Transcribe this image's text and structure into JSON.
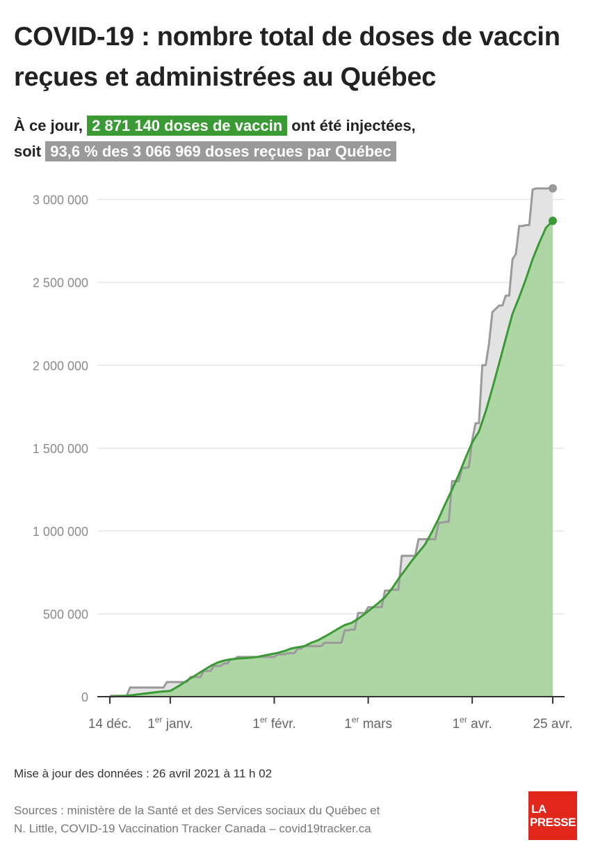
{
  "header": {
    "title": "COVID-19 : nombre total de doses de vaccin reçues et administrées au Québec",
    "subtitle_part1": "À ce jour,",
    "subtitle_highlight_green": "2 871 140 doses de vaccin",
    "subtitle_part2": "ont été injectées,",
    "subtitle_part3": "soit",
    "subtitle_highlight_grey": "93,6 % des 3 066 969 doses reçues par Québec"
  },
  "colors": {
    "administered_line": "#3a9a34",
    "administered_fill": "#aed5a4",
    "received_line": "#9a9a9a",
    "received_fill": "#e3e3e3",
    "grid": "#e6e6e6",
    "logo_bg": "#e1261c"
  },
  "chart_data": {
    "type": "area",
    "title": "COVID-19 : nombre total de doses de vaccin reçues et administrées au Québec",
    "xlabel": "",
    "ylabel": "",
    "x_unit": "days since 14 déc. 2020",
    "xlim": [
      0,
      132
    ],
    "ylim": [
      0,
      3200000
    ],
    "grid": true,
    "y_ticks": [
      {
        "value": 0,
        "label": "0"
      },
      {
        "value": 500000,
        "label": "500 000"
      },
      {
        "value": 1000000,
        "label": "1 000 000"
      },
      {
        "value": 1500000,
        "label": "1 500 000"
      },
      {
        "value": 2000000,
        "label": "2 000 000"
      },
      {
        "value": 2500000,
        "label": "2 500 000"
      },
      {
        "value": 3000000,
        "label": "3 000 000"
      }
    ],
    "x_ticks": [
      {
        "day": 0,
        "label": "14 déc.",
        "sup": ""
      },
      {
        "day": 18,
        "label": "janv.",
        "sup": "er",
        "prefix": "1"
      },
      {
        "day": 49,
        "label": "févr.",
        "sup": "er",
        "prefix": "1"
      },
      {
        "day": 77,
        "label": "mars",
        "sup": "er",
        "prefix": "1"
      },
      {
        "day": 108,
        "label": "avr.",
        "sup": "er",
        "prefix": "1"
      },
      {
        "day": 132,
        "label": "25 avr.",
        "sup": ""
      }
    ],
    "series": [
      {
        "name": "Doses reçues",
        "style": "step",
        "x": [
          0,
          5,
          6,
          16,
          17,
          23,
          24,
          27,
          28,
          30,
          31,
          33,
          34,
          35,
          36,
          37,
          38,
          49,
          50,
          52,
          53,
          55,
          56,
          57,
          58,
          63,
          64,
          69,
          70,
          71,
          72,
          73,
          74,
          76,
          77,
          81,
          82,
          83,
          84,
          86,
          87,
          91,
          92,
          97,
          98,
          99,
          100,
          101,
          102,
          104,
          105,
          106,
          107,
          108,
          109,
          110,
          111,
          112,
          113,
          114,
          115,
          116,
          117,
          118,
          119,
          120,
          121,
          122,
          123,
          124,
          125,
          126,
          127,
          128,
          129,
          130,
          131,
          132
        ],
        "values": [
          5000,
          5000,
          55000,
          55000,
          88000,
          88000,
          118000,
          118000,
          155000,
          155000,
          185000,
          185000,
          200000,
          200000,
          225000,
          225000,
          240000,
          240000,
          255000,
          255000,
          262000,
          262000,
          290000,
          290000,
          305000,
          305000,
          325000,
          325000,
          400000,
          400000,
          405000,
          405000,
          505000,
          505000,
          540000,
          540000,
          640000,
          640000,
          645000,
          645000,
          850000,
          850000,
          950000,
          950000,
          1050000,
          1050000,
          1055000,
          1055000,
          1300000,
          1300000,
          1380000,
          1380000,
          1385000,
          1550000,
          1650000,
          1650000,
          2000000,
          2000000,
          2130000,
          2320000,
          2340000,
          2360000,
          2360000,
          2420000,
          2420000,
          2640000,
          2670000,
          2840000,
          2840000,
          2845000,
          2845000,
          3060000,
          3066969,
          3066969,
          3066969,
          3066969,
          3066969,
          3066969
        ]
      },
      {
        "name": "Doses administrées",
        "style": "line",
        "x": [
          0,
          5,
          10,
          15,
          18,
          21,
          24,
          26,
          28,
          30,
          32,
          34,
          36,
          38,
          40,
          42,
          44,
          46,
          48,
          50,
          52,
          54,
          56,
          58,
          60,
          62,
          64,
          66,
          68,
          70,
          72,
          74,
          76,
          78,
          80,
          82,
          84,
          86,
          88,
          90,
          92,
          94,
          96,
          98,
          100,
          102,
          104,
          106,
          108,
          110,
          112,
          114,
          116,
          118,
          120,
          122,
          124,
          126,
          128,
          130,
          132
        ],
        "values": [
          0,
          5000,
          18000,
          30000,
          35000,
          70000,
          110000,
          135000,
          160000,
          185000,
          205000,
          218000,
          225000,
          230000,
          232000,
          235000,
          240000,
          248000,
          256000,
          264000,
          275000,
          290000,
          298000,
          305000,
          325000,
          340000,
          362000,
          385000,
          410000,
          432000,
          445000,
          470000,
          500000,
          532000,
          565000,
          600000,
          650000,
          710000,
          765000,
          820000,
          870000,
          920000,
          995000,
          1075000,
          1165000,
          1250000,
          1340000,
          1440000,
          1535000,
          1600000,
          1720000,
          1860000,
          2010000,
          2160000,
          2310000,
          2410000,
          2520000,
          2640000,
          2740000,
          2830000,
          2871140
        ]
      }
    ]
  },
  "footer": {
    "update": "Mise à jour des données : 26 avril 2021 à 11 h 02",
    "sources_line1": "Sources : ministère de la Santé et des Services sociaux du Québec et",
    "sources_line2": "N. Little, COVID-19 Vaccination Tracker Canada – covid19tracker.ca",
    "logo_line1": "LA",
    "logo_line2": "PRESSE"
  }
}
